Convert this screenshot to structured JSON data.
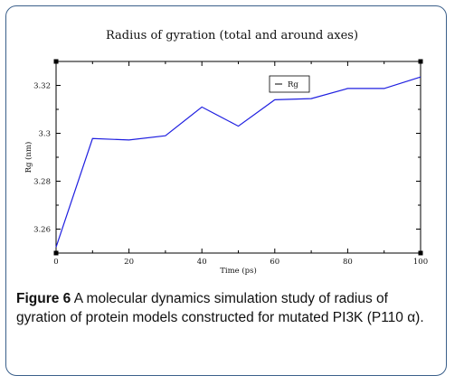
{
  "figure": {
    "caption_label": "Figure 6",
    "caption_text": "A molecular dynamics simulation study of radius of gyration of protein models constructed for mutated PI3K (P110 α)."
  },
  "chart_data": {
    "type": "line",
    "title": "Radius of gyration (total and around axes)",
    "xlabel": "Time (ps)",
    "ylabel": "Rg (nm)",
    "xlim": [
      0,
      100
    ],
    "ylim": [
      3.25,
      3.33
    ],
    "xticks": [
      0,
      20,
      40,
      60,
      80,
      100
    ],
    "yticks": [
      3.26,
      3.28,
      3.3,
      3.32
    ],
    "ytick_labels": [
      "3.26",
      "3.28",
      "3.3",
      "3.32"
    ],
    "legend": "top-right",
    "grid": false,
    "series": [
      {
        "name": "Rg",
        "color": "#1f1fe0",
        "x": [
          0,
          10,
          20,
          30,
          40,
          50,
          60,
          70,
          80,
          90,
          100
        ],
        "y": [
          3.2525,
          3.2978,
          3.2972,
          3.299,
          3.311,
          3.303,
          3.314,
          3.3145,
          3.3187,
          3.3187,
          3.3235
        ]
      }
    ]
  }
}
